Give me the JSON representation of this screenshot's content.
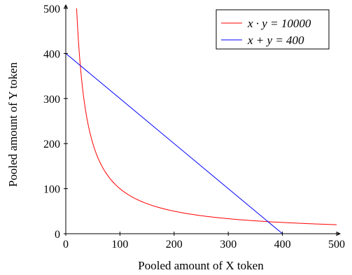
{
  "chart_data": {
    "type": "line",
    "title": "",
    "xlabel": "Pooled amount of X token",
    "ylabel": "Pooled amount of Y token",
    "xlim": [
      0,
      500
    ],
    "ylim": [
      0,
      500
    ],
    "xticks": [
      "0",
      "100",
      "200",
      "300",
      "400",
      "500"
    ],
    "yticks": [
      "0",
      "100",
      "200",
      "300",
      "400",
      "500"
    ],
    "grid": false,
    "legend_position": "top-right",
    "series": [
      {
        "name": "x · y = 10000",
        "color": "#ff0000",
        "kind": "hyperbola",
        "constant": 10000,
        "x_range": [
          20,
          500
        ]
      },
      {
        "name": "x + y = 400",
        "color": "#0000ff",
        "kind": "line",
        "points": [
          [
            0,
            400
          ],
          [
            400,
            0
          ]
        ]
      }
    ]
  }
}
